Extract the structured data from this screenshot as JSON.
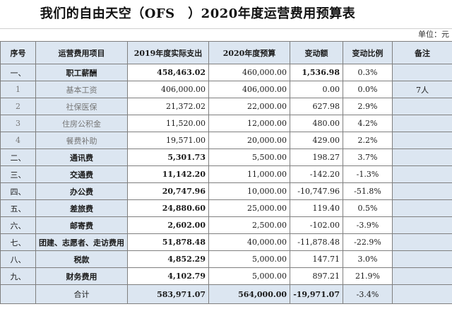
{
  "title": "我们的自由天空（OFS　）2020年度运营费用预算表",
  "unit": "单位：元",
  "headers": {
    "no": "序号",
    "name": "运营费用项目",
    "actual": "2019年度实际支出",
    "budget": "2020年度预算",
    "change": "变动额",
    "ratio": "变动比例",
    "note": "备注"
  },
  "rows": [
    {
      "no": "一、",
      "name": "职工薪酬",
      "actual": "458,463.02",
      "budget": "460,000.00",
      "change": "1,536.98",
      "ratio": "0.3%",
      "note": "",
      "sub": false
    },
    {
      "no": "1",
      "name": "基本工资",
      "actual": "406,000.00",
      "budget": "406,000.00",
      "change": "0.00",
      "ratio": "0.0%",
      "note": "7人",
      "sub": true
    },
    {
      "no": "2",
      "name": "社保医保",
      "actual": "21,372.02",
      "budget": "22,000.00",
      "change": "627.98",
      "ratio": "2.9%",
      "note": "",
      "sub": true
    },
    {
      "no": "3",
      "name": "住房公积金",
      "actual": "11,520.00",
      "budget": "12,000.00",
      "change": "480.00",
      "ratio": "4.2%",
      "note": "",
      "sub": true
    },
    {
      "no": "4",
      "name": "餐费补助",
      "actual": "19,571.00",
      "budget": "20,000.00",
      "change": "429.00",
      "ratio": "2.2%",
      "note": "",
      "sub": true
    },
    {
      "no": "二、",
      "name": "通讯费",
      "actual": "5,301.73",
      "budget": "5,500.00",
      "change": "198.27",
      "ratio": "3.7%",
      "note": "",
      "sub": false
    },
    {
      "no": "三、",
      "name": "交通费",
      "actual": "11,142.20",
      "budget": "11,000.00",
      "change": "-142.20",
      "ratio": "-1.3%",
      "note": "",
      "sub": false
    },
    {
      "no": "四、",
      "name": "办公费",
      "actual": "20,747.96",
      "budget": "10,000.00",
      "change": "-10,747.96",
      "ratio": "-51.8%",
      "note": "",
      "sub": false
    },
    {
      "no": "五、",
      "name": "差旅费",
      "actual": "24,880.60",
      "budget": "25,000.00",
      "change": "119.40",
      "ratio": "0.5%",
      "note": "",
      "sub": false
    },
    {
      "no": "六、",
      "name": "邮寄费",
      "actual": "2,602.00",
      "budget": "2,500.00",
      "change": "-102.00",
      "ratio": "-3.9%",
      "note": "",
      "sub": false
    },
    {
      "no": "七、",
      "name": "团建、志愿者、走访费用",
      "actual": "51,878.48",
      "budget": "40,000.00",
      "change": "-11,878.48",
      "ratio": "-22.9%",
      "note": "",
      "sub": false
    },
    {
      "no": "八、",
      "name": "税款",
      "actual": "4,852.29",
      "budget": "5,000.00",
      "change": "147.71",
      "ratio": "3.0%",
      "note": "",
      "sub": false
    },
    {
      "no": "九、",
      "name": "财务费用",
      "actual": "4,102.79",
      "budget": "5,000.00",
      "change": "897.21",
      "ratio": "21.9%",
      "note": "",
      "sub": false
    }
  ],
  "total": {
    "no": "",
    "name": "合计",
    "actual": "583,971.07",
    "budget": "564,000.00",
    "change": "-19,971.07",
    "ratio": "-3.4%",
    "note": ""
  }
}
